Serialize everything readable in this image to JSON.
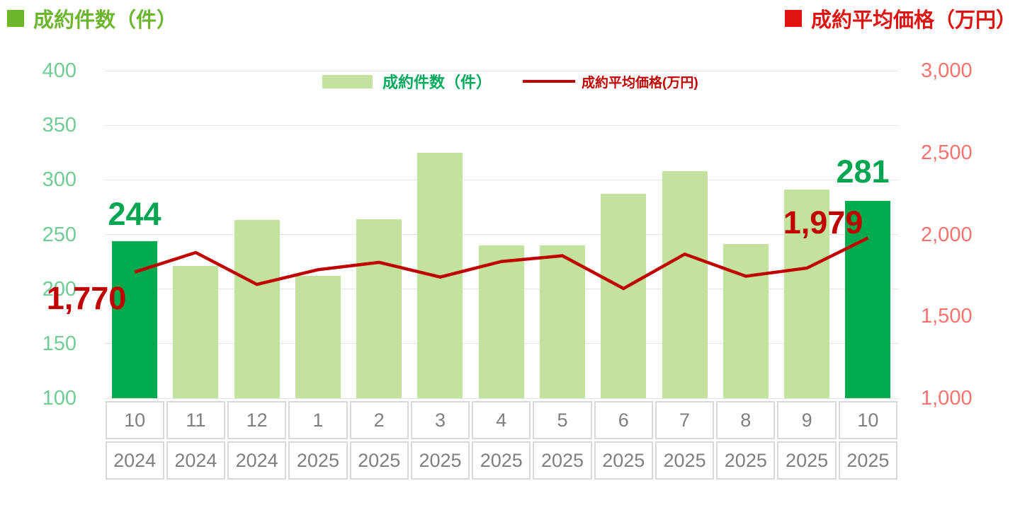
{
  "titles": {
    "left": "成約件数（件）",
    "right": "成約平均価格（万円）"
  },
  "legend": {
    "bar": "成約件数（件）",
    "line": "成約平均価格(万円)"
  },
  "colors": {
    "title_green": "#6CB52D",
    "title_red": "#E01311",
    "bar_light": "#C3E29E",
    "bar_dark": "#00AB4F",
    "val_green": "#00A551",
    "legend_green": "#00A95C",
    "red": "#C00000",
    "axis_green": "#70CB96",
    "axis_red": "#F4736F",
    "grid": "#E4E4E4",
    "xaxis_border": "#D9D9D9",
    "xaxis_text": "#7F7F7F"
  },
  "chart_data": {
    "type": "combo",
    "title": "",
    "categories": {
      "months": [
        "10",
        "11",
        "12",
        "1",
        "2",
        "3",
        "4",
        "5",
        "6",
        "7",
        "8",
        "9",
        "10"
      ],
      "years": [
        "2024",
        "2024",
        "2024",
        "2025",
        "2025",
        "2025",
        "2025",
        "2025",
        "2025",
        "2025",
        "2025",
        "2025",
        "2025"
      ]
    },
    "series": [
      {
        "name": "成約件数（件）",
        "type": "bar",
        "axis": "left",
        "values": [
          244,
          221,
          263,
          212,
          264,
          325,
          240,
          240,
          287,
          308,
          241,
          291,
          281
        ]
      },
      {
        "name": "成約平均価格(万円)",
        "type": "line",
        "axis": "right",
        "values": [
          1770,
          1890,
          1695,
          1785,
          1830,
          1740,
          1835,
          1870,
          1670,
          1880,
          1745,
          1795,
          1979
        ]
      }
    ],
    "axis_left": {
      "title": "成約件数（件）",
      "min": 100,
      "max": 400,
      "tick_values": [
        400,
        350,
        300,
        250,
        200,
        150,
        100
      ],
      "tick_labels": [
        "400",
        "350",
        "300",
        "250",
        "200",
        "150",
        "100"
      ]
    },
    "axis_right": {
      "title": "成約平均価格（万円）",
      "min": 1000,
      "max": 3000,
      "tick_values": [
        3000,
        2500,
        2000,
        1500,
        1000
      ],
      "tick_labels": [
        "3,000",
        "2,500",
        "2,000",
        "1,500",
        "1,000"
      ]
    },
    "highlighted_bars": [
      0,
      12
    ],
    "annotations": {
      "first_bar": "244",
      "first_line": "1,770",
      "last_bar": "281",
      "last_line": "1,979"
    },
    "grid": "horizontal",
    "legend_position": "top-center"
  }
}
